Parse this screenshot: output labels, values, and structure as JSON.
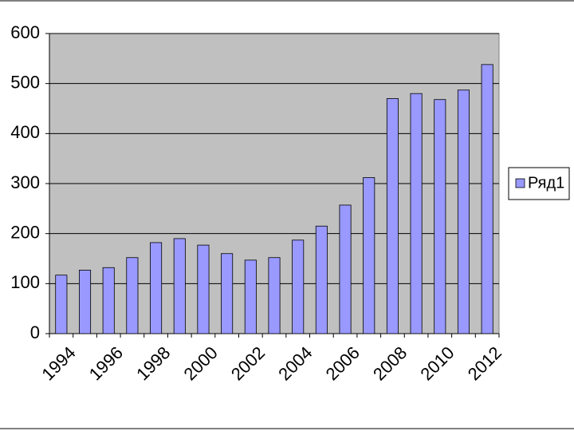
{
  "chart_data": {
    "type": "bar",
    "categories": [
      "1994",
      null,
      "1996",
      null,
      "1998",
      null,
      "2000",
      null,
      "2002",
      null,
      "2004",
      null,
      "2006",
      null,
      "2008",
      null,
      "2010",
      null,
      "2012"
    ],
    "series": [
      {
        "name": "Ряд1",
        "color": "#9999ff",
        "values": [
          117,
          127,
          132,
          152,
          182,
          190,
          177,
          160,
          147,
          152,
          187,
          215,
          257,
          312,
          470,
          480,
          468,
          487,
          538
        ]
      }
    ],
    "ylim": [
      0,
      600
    ],
    "yticks": [
      0,
      100,
      200,
      300,
      400,
      500,
      600
    ],
    "grid": true,
    "legend": "right"
  }
}
